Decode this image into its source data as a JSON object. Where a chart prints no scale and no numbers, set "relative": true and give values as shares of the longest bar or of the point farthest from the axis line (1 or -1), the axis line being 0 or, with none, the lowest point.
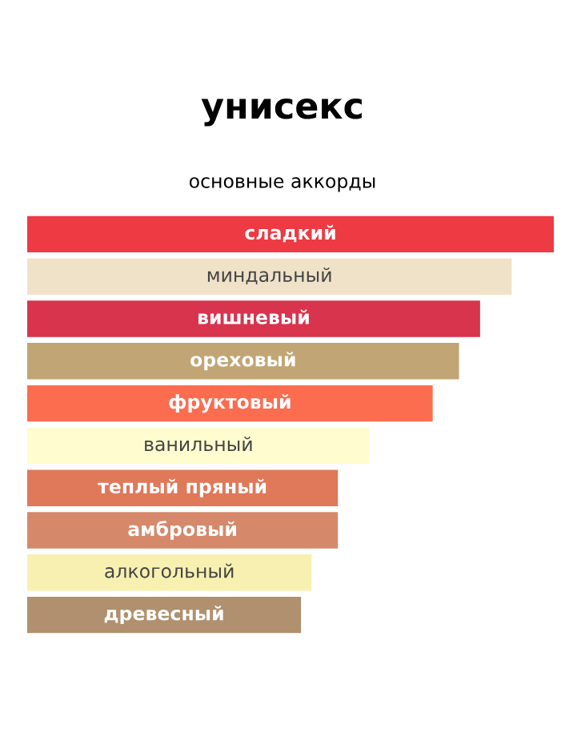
{
  "chart_data": {
    "type": "bar",
    "orientation": "horizontal",
    "relative": true,
    "title": "унисекс",
    "subtitle": "основные аккорды",
    "categories": [
      "сладкий",
      "миндальный",
      "вишневый",
      "ореховый",
      "фруктовый",
      "ванильный",
      "теплый пряный",
      "амбровый",
      "алкогольный",
      "древесный"
    ],
    "values": [
      1,
      0.92,
      0.86,
      0.82,
      0.77,
      0.65,
      0.59,
      0.59,
      0.54,
      0.52
    ],
    "colors": [
      "#ee3a43",
      "#f0e2c8",
      "#d8344e",
      "#c1a574",
      "#fc6d4f",
      "#fffdcf",
      "#e0785a",
      "#d5896a",
      "#f8f0b0",
      "#b0906e"
    ],
    "legend": false
  }
}
